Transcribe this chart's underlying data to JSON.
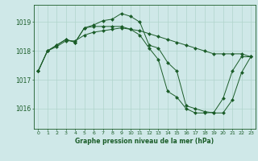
{
  "title": "Graphe pression niveau de la mer (hPa)",
  "background_color": "#cfe8e8",
  "grid_color": "#b0d4cc",
  "line_color": "#1a5c28",
  "marker_color": "#1a5c28",
  "x_labels": [
    "0",
    "1",
    "2",
    "3",
    "4",
    "5",
    "6",
    "7",
    "8",
    "9",
    "10",
    "11",
    "12",
    "13",
    "14",
    "15",
    "16",
    "17",
    "18",
    "19",
    "20",
    "21",
    "22",
    "23"
  ],
  "ylim": [
    1015.3,
    1019.6
  ],
  "yticks": [
    1016,
    1017,
    1018,
    1019
  ],
  "series": [
    [
      1017.3,
      1018.0,
      1018.2,
      1018.4,
      1018.3,
      1018.8,
      1018.9,
      1019.05,
      1019.1,
      1019.3,
      1019.2,
      1019.0,
      1018.2,
      1018.1,
      1017.6,
      1017.3,
      1016.1,
      1016.0,
      1015.9,
      1015.85,
      1015.85,
      1016.3,
      1017.25,
      1017.8
    ],
    [
      1017.3,
      1018.0,
      1018.2,
      1018.4,
      1018.3,
      1018.8,
      1018.85,
      1018.85,
      1018.85,
      1018.85,
      1018.75,
      1018.7,
      1018.6,
      1018.5,
      1018.4,
      1018.3,
      1018.2,
      1018.1,
      1018.0,
      1017.9,
      1017.9,
      1017.9,
      1017.9,
      1017.8
    ],
    [
      1017.3,
      1018.0,
      1018.15,
      1018.35,
      1018.35,
      1018.55,
      1018.65,
      1018.7,
      1018.75,
      1018.8,
      1018.75,
      1018.55,
      1018.1,
      1017.7,
      1016.6,
      1016.4,
      1016.0,
      1015.85,
      1015.85,
      1015.87,
      1016.35,
      1017.3,
      1017.8,
      1017.8
    ]
  ]
}
